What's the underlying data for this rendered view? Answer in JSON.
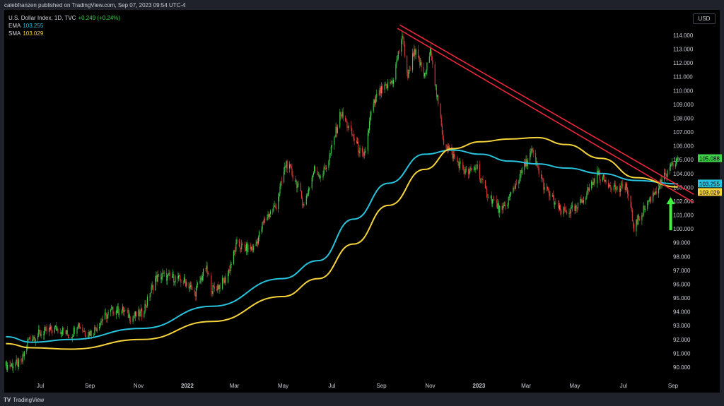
{
  "header": {
    "published": "calebfranzen published on TradingView.com, Sep 07, 2023 09:54 UTC-4"
  },
  "legend": {
    "symbol": "U.S. Dollar Index, 1D, TVC",
    "change": "+0.249 (+0.24%)",
    "ema_label": "EMA",
    "ema_value": "103.255",
    "sma_label": "SMA",
    "sma_value": "103.029"
  },
  "currency": "USD",
  "footer": {
    "logo": "TV",
    "brand": "TradingView"
  },
  "colors": {
    "up": "#3fd14b",
    "down": "#e23b3b",
    "ema": "#27c3dd",
    "sma": "#f5d33b",
    "trendline": "#e8283a",
    "arrow": "#3ef23e",
    "background": "#000000"
  },
  "chart_data": {
    "type": "candlestick",
    "title": "U.S. Dollar Index, 1D, TVC",
    "ylim": [
      89.3,
      115.5
    ],
    "y_ticks": [
      "114.000",
      "113.000",
      "112.000",
      "111.000",
      "110.000",
      "109.000",
      "108.000",
      "107.000",
      "106.000",
      "105.000",
      "104.000",
      "103.000",
      "102.000",
      "101.000",
      "100.000",
      "99.000",
      "98.000",
      "97.000",
      "96.000",
      "95.000",
      "94.000",
      "93.000",
      "92.000",
      "91.000",
      "90.000"
    ],
    "x_ticks": [
      {
        "label": "Jul",
        "date": "2021-07-01"
      },
      {
        "label": "Sep",
        "date": "2021-09-01"
      },
      {
        "label": "Nov",
        "date": "2021-11-01"
      },
      {
        "label": "2022",
        "date": "2022-01-01",
        "bold": true
      },
      {
        "label": "Mar",
        "date": "2022-03-01"
      },
      {
        "label": "May",
        "date": "2022-05-01"
      },
      {
        "label": "Jul",
        "date": "2022-07-01"
      },
      {
        "label": "Sep",
        "date": "2022-09-01"
      },
      {
        "label": "Nov",
        "date": "2022-11-01"
      },
      {
        "label": "2023",
        "date": "2023-01-01",
        "bold": true
      },
      {
        "label": "Mar",
        "date": "2023-03-01"
      },
      {
        "label": "May",
        "date": "2023-05-01"
      },
      {
        "label": "Jul",
        "date": "2023-07-01"
      },
      {
        "label": "Sep",
        "date": "2023-09-01"
      }
    ],
    "price_path": [
      [
        "2021-05-19",
        90.1
      ],
      [
        "2021-06-07",
        90.25
      ],
      [
        "2021-06-16",
        92.0
      ],
      [
        "2021-07-04",
        92.5
      ],
      [
        "2021-07-21",
        92.8
      ],
      [
        "2021-07-30",
        92.6
      ],
      [
        "2021-08-08",
        92.2
      ],
      [
        "2021-08-17",
        93.2
      ],
      [
        "2021-08-26",
        92.5
      ],
      [
        "2021-09-04",
        92.5
      ],
      [
        "2021-09-17",
        93.5
      ],
      [
        "2021-09-30",
        94.1
      ],
      [
        "2021-10-13",
        94.1
      ],
      [
        "2021-10-22",
        93.6
      ],
      [
        "2021-11-05",
        93.9
      ],
      [
        "2021-11-13",
        94.9
      ],
      [
        "2021-11-22",
        96.4
      ],
      [
        "2021-12-01",
        96.6
      ],
      [
        "2021-12-19",
        96.4
      ],
      [
        "2022-01-01",
        96.1
      ],
      [
        "2022-01-10",
        95.3
      ],
      [
        "2022-01-24",
        97.2
      ],
      [
        "2022-02-01",
        95.6
      ],
      [
        "2022-02-10",
        95.9
      ],
      [
        "2022-02-19",
        96.4
      ],
      [
        "2022-03-04",
        98.9
      ],
      [
        "2022-03-13",
        98.6
      ],
      [
        "2022-03-26",
        98.6
      ],
      [
        "2022-04-08",
        100.7
      ],
      [
        "2022-04-22",
        101.7
      ],
      [
        "2022-05-05",
        104.8
      ],
      [
        "2022-05-18",
        103.3
      ],
      [
        "2022-05-27",
        101.7
      ],
      [
        "2022-06-09",
        104.3
      ],
      [
        "2022-06-18",
        103.8
      ],
      [
        "2022-06-27",
        105.0
      ],
      [
        "2022-07-12",
        108.4
      ],
      [
        "2022-07-24",
        107.1
      ],
      [
        "2022-08-01",
        106.1
      ],
      [
        "2022-08-10",
        105.0
      ],
      [
        "2022-08-19",
        108.4
      ],
      [
        "2022-08-28",
        109.8
      ],
      [
        "2022-09-06",
        110.2
      ],
      [
        "2022-09-15",
        110.7
      ],
      [
        "2022-09-27",
        114.0
      ],
      [
        "2022-10-04",
        111.0
      ],
      [
        "2022-10-12",
        113.0
      ],
      [
        "2022-10-25",
        111.0
      ],
      [
        "2022-11-02",
        113.0
      ],
      [
        "2022-11-09",
        109.7
      ],
      [
        "2022-11-18",
        106.3
      ],
      [
        "2022-12-03",
        105.0
      ],
      [
        "2022-12-17",
        104.0
      ],
      [
        "2022-12-30",
        104.5
      ],
      [
        "2023-01-08",
        102.8
      ],
      [
        "2023-01-30",
        101.2
      ],
      [
        "2023-02-21",
        103.8
      ],
      [
        "2023-03-08",
        105.6
      ],
      [
        "2023-03-24",
        103.0
      ],
      [
        "2023-04-14",
        101.2
      ],
      [
        "2023-05-03",
        101.4
      ],
      [
        "2023-05-30",
        104.0
      ],
      [
        "2023-06-07",
        103.5
      ],
      [
        "2023-06-25",
        102.8
      ],
      [
        "2023-07-04",
        103.2
      ],
      [
        "2023-07-14",
        100.1
      ],
      [
        "2023-07-30",
        101.8
      ],
      [
        "2023-08-21",
        103.7
      ],
      [
        "2023-09-07",
        105.088
      ]
    ],
    "series": [
      {
        "name": "EMA",
        "values": [
          [
            "2021-05-19",
            92.2
          ],
          [
            "2021-06-20",
            91.8
          ],
          [
            "2021-08-08",
            92.0
          ],
          [
            "2021-11-05",
            92.8
          ],
          [
            "2022-02-01",
            94.4
          ],
          [
            "2022-04-30",
            96.4
          ],
          [
            "2022-06-14",
            97.7
          ],
          [
            "2022-07-28",
            100.7
          ],
          [
            "2022-09-10",
            103.3
          ],
          [
            "2022-10-25",
            105.4
          ],
          [
            "2022-11-29",
            105.7
          ],
          [
            "2023-01-03",
            105.4
          ],
          [
            "2023-02-08",
            104.9
          ],
          [
            "2023-03-15",
            104.7
          ],
          [
            "2023-04-20",
            104.4
          ],
          [
            "2023-06-03",
            104.0
          ],
          [
            "2023-07-17",
            103.5
          ],
          [
            "2023-09-07",
            103.255
          ]
        ]
      },
      {
        "name": "SMA",
        "values": [
          [
            "2021-05-19",
            91.7
          ],
          [
            "2021-06-20",
            91.4
          ],
          [
            "2021-08-08",
            91.3
          ],
          [
            "2021-11-05",
            92.0
          ],
          [
            "2022-02-01",
            93.3
          ],
          [
            "2022-04-30",
            95.1
          ],
          [
            "2022-06-14",
            96.4
          ],
          [
            "2022-07-28",
            98.9
          ],
          [
            "2022-09-10",
            101.7
          ],
          [
            "2022-10-25",
            104.3
          ],
          [
            "2022-11-29",
            105.8
          ],
          [
            "2023-01-03",
            106.3
          ],
          [
            "2023-02-08",
            106.5
          ],
          [
            "2023-03-15",
            106.6
          ],
          [
            "2023-04-20",
            106.1
          ],
          [
            "2023-06-03",
            105.1
          ],
          [
            "2023-07-17",
            103.7
          ],
          [
            "2023-09-07",
            103.029
          ]
        ]
      }
    ],
    "last_price_labels": [
      {
        "value": "105.088",
        "kind": "price"
      },
      {
        "value": "103.255",
        "kind": "ema"
      },
      {
        "value": "103.029",
        "kind": "sma"
      }
    ],
    "trendlines": [
      {
        "from": [
          "2022-09-24",
          114.75
        ],
        "to": [
          "2023-09-27",
          102.5
        ]
      },
      {
        "from": [
          "2022-09-21",
          114.5
        ],
        "to": [
          "2023-09-27",
          101.9
        ]
      }
    ],
    "annotations": [
      {
        "type": "arrow-up",
        "date": "2023-08-29",
        "from": 99.9,
        "to": 102.3
      }
    ]
  }
}
